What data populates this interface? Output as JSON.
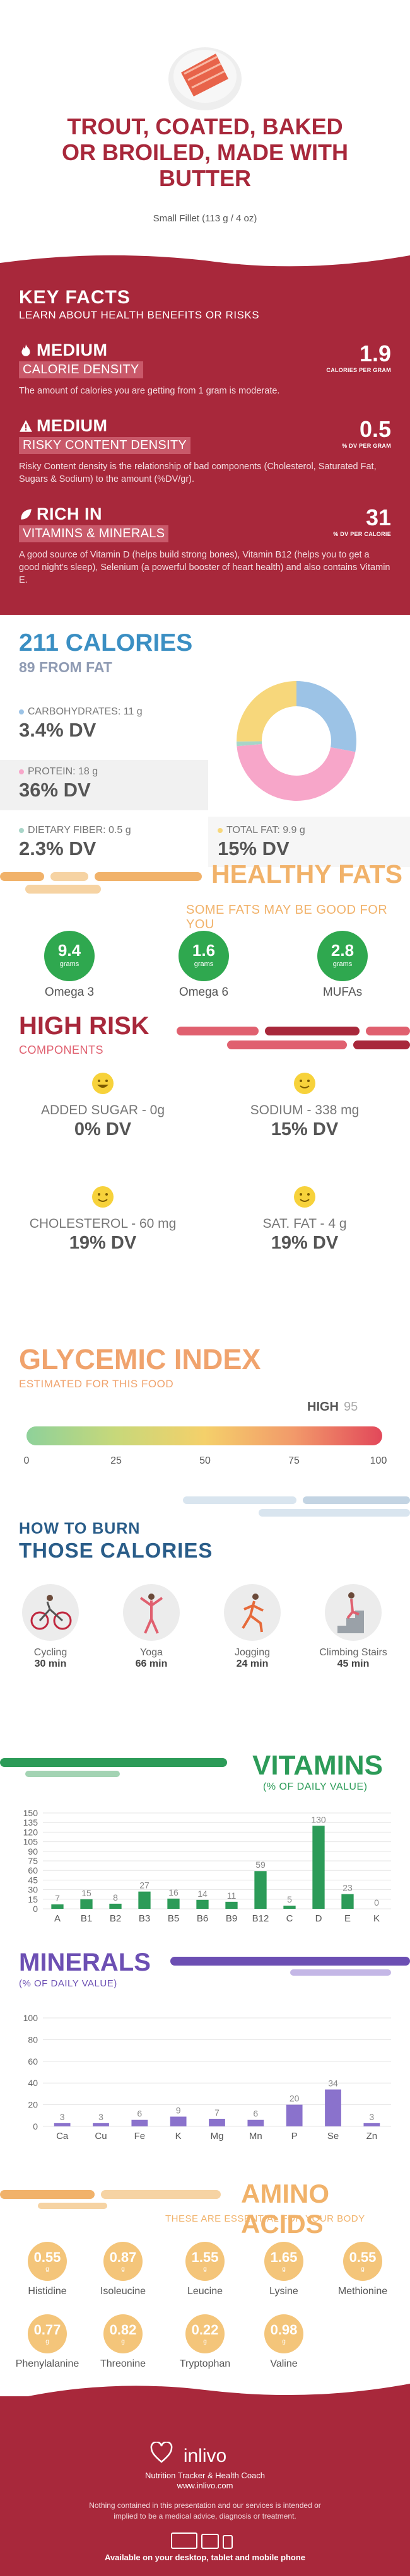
{
  "header": {
    "title_line1": "TROUT, COATED, BAKED",
    "title_line2": "OR BROILED, MADE WITH",
    "title_line3": "BUTTER",
    "serving": "Small Fillet (113 g / 4 oz)"
  },
  "key_facts": {
    "title": "KEY FACTS",
    "subtitle": "LEARN ABOUT HEALTH BENEFITS OR RISKS",
    "calorie_density": {
      "level": "MEDIUM",
      "label": "CALORIE DENSITY",
      "value": "1.9",
      "unit": "CALORIES PER GRAM",
      "desc": "The amount of calories you are getting from 1 gram is moderate."
    },
    "risky_content": {
      "level": "MEDIUM",
      "label": "RISKY CONTENT DENSITY",
      "value": "0.5",
      "unit": "% DV PER GRAM",
      "desc": "Risky Content density is the relationship of bad components (Cholesterol, Saturated Fat, Sugars & Sodium) to the amount (%DV/gr)."
    },
    "rich_in": {
      "level": "RICH IN",
      "label": "VITAMINS & MINERALS",
      "value": "31",
      "unit": "% DV PER CALORIE",
      "desc": "A good source of Vitamin D (helps build strong bones), Vitamin B12 (helps you to get a good night's sleep), Selenium (a powerful booster of heart health) and also contains Vitamin E."
    }
  },
  "calories": {
    "title": "211 CALORIES",
    "fat": "89 FROM FAT",
    "carbs_label": "CARBOHYDRATES: 11 g",
    "carbs_dv": "3.4% DV",
    "carbs_color": "#9cc3e6",
    "protein_label": "PROTEIN: 18 g",
    "protein_dv": "36% DV",
    "protein_color": "#f7a6c9",
    "fiber_label": "DIETARY FIBER: 0.5 g",
    "fiber_dv": "2.3% DV",
    "fiber_color": "#a8d5c8",
    "fat_label": "TOTAL FAT: 9.9 g",
    "fat_dv": "15% DV",
    "fat_color": "#f7d77b"
  },
  "healthy_fats": {
    "title": "HEALTHY FATS",
    "subtitle": "SOME FATS MAY BE GOOD FOR YOU",
    "items": [
      {
        "value": "9.4",
        "unit": "grams",
        "label": "Omega 3"
      },
      {
        "value": "1.6",
        "unit": "grams",
        "label": "Omega 6"
      },
      {
        "value": "2.8",
        "unit": "grams",
        "label": "MUFAs"
      }
    ]
  },
  "high_risk": {
    "title": "HIGH RISK",
    "subtitle": "COMPONENTS",
    "items": [
      {
        "label": "ADDED SUGAR - 0g",
        "dv": "0% DV"
      },
      {
        "label": "SODIUM - 338 mg",
        "dv": "15% DV"
      },
      {
        "label": "CHOLESTEROL - 60 mg",
        "dv": "19% DV"
      },
      {
        "label": "SAT. FAT - 4 g",
        "dv": "19% DV"
      }
    ]
  },
  "glycemic": {
    "title": "GLYCEMIC INDEX",
    "subtitle": "ESTIMATED FOR THIS FOOD",
    "level": "HIGH",
    "value": "95",
    "ticks": [
      "0",
      "25",
      "50",
      "75",
      "100"
    ]
  },
  "burn": {
    "title1": "HOW TO BURN",
    "title2": "THOSE CALORIES",
    "items": [
      {
        "name": "Cycling",
        "minutes": "30 min"
      },
      {
        "name": "Yoga",
        "minutes": "66 min"
      },
      {
        "name": "Jogging",
        "minutes": "24 min"
      },
      {
        "name": "Climbing Stairs",
        "minutes": "45 min"
      }
    ]
  },
  "vitamins": {
    "title": "VITAMINS",
    "subtitle": "(% OF DAILY VALUE)"
  },
  "minerals": {
    "title": "MINERALS",
    "subtitle": "(% OF DAILY VALUE)"
  },
  "amino": {
    "title": "AMINO ACIDS",
    "subtitle": "THESE ARE ESSENTIAL FOR YOUR BODY",
    "items": [
      {
        "value": "0.55",
        "unit": "g",
        "name": "Histidine"
      },
      {
        "value": "0.87",
        "unit": "g",
        "name": "Isoleucine"
      },
      {
        "value": "1.55",
        "unit": "g",
        "name": "Leucine"
      },
      {
        "value": "1.65",
        "unit": "g",
        "name": "Lysine"
      },
      {
        "value": "0.55",
        "unit": "g",
        "name": "Methionine"
      },
      {
        "value": "0.77",
        "unit": "g",
        "name": "Phenylalanine"
      },
      {
        "value": "0.82",
        "unit": "g",
        "name": "Threonine"
      },
      {
        "value": "0.22",
        "unit": "g",
        "name": "Tryptophan"
      },
      {
        "value": "0.98",
        "unit": "g",
        "name": "Valine"
      }
    ]
  },
  "footer": {
    "brand": "inlivo",
    "tagline": "Nutrition Tracker & Health Coach",
    "url": "www.inlivo.com",
    "disclaimer": "Nothing contained in this presentation and our services is intended or implied to be a medical advice, diagnosis or treatment.",
    "available": "Available on your desktop, tablet and mobile phone"
  },
  "chart_data": [
    {
      "type": "pie",
      "categories": [
        "Carbohydrates",
        "Protein",
        "Dietary Fiber",
        "Total Fat"
      ],
      "values": [
        11,
        18,
        0.5,
        9.9
      ],
      "colors": [
        "#9cc3e6",
        "#f7a6c9",
        "#a8d5c8",
        "#f7d77b"
      ]
    },
    {
      "type": "bar",
      "title": "VITAMINS",
      "subtitle": "(% OF DAILY VALUE)",
      "categories": [
        "A",
        "B1",
        "B2",
        "B3",
        "B5",
        "B6",
        "B9",
        "B12",
        "C",
        "D",
        "E",
        "K"
      ],
      "values": [
        7,
        15,
        8,
        27,
        16,
        14,
        11,
        59,
        5,
        130,
        23,
        0
      ],
      "ylim": [
        0,
        150
      ],
      "yticks": [
        0,
        15,
        30,
        45,
        60,
        75,
        90,
        105,
        120,
        135,
        150
      ],
      "color": "#2c9b58"
    },
    {
      "type": "bar",
      "title": "MINERALS",
      "subtitle": "(% OF DAILY VALUE)",
      "categories": [
        "Ca",
        "Cu",
        "Fe",
        "K",
        "Mg",
        "Mn",
        "P",
        "Se",
        "Zn"
      ],
      "values": [
        3,
        3,
        6,
        9,
        7,
        6,
        20,
        34,
        3
      ],
      "ylim": [
        0,
        100
      ],
      "yticks": [
        0,
        20,
        40,
        60,
        80,
        100
      ],
      "color": "#8a72cc"
    }
  ]
}
